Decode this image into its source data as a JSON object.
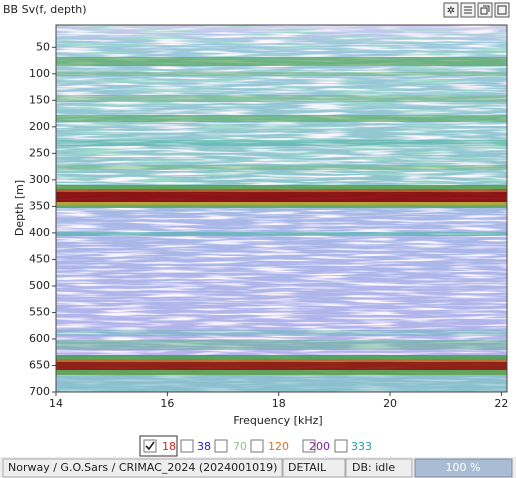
{
  "window": {
    "title": "BB Sv(f, depth)"
  },
  "plot": {
    "x_label": "Frequency [kHz]",
    "y_label": "Depth [m]",
    "xlim": [
      14,
      22.1
    ],
    "ylim": [
      8,
      700
    ],
    "xticks": [
      14,
      16,
      18,
      20,
      22
    ],
    "yticks": [
      50,
      100,
      150,
      200,
      250,
      300,
      350,
      400,
      450,
      500,
      550,
      600,
      650,
      700
    ]
  },
  "channels": [
    {
      "label": "18",
      "checked": true,
      "color": "#e02020"
    },
    {
      "label": "38",
      "checked": false,
      "color": "#2020c0"
    },
    {
      "label": "70",
      "checked": false,
      "color": "#90c090"
    },
    {
      "label": "120",
      "checked": false,
      "color": "#e07020"
    },
    {
      "label": "200",
      "checked": false,
      "color": "#8020a0"
    },
    {
      "label": "333",
      "checked": false,
      "color": "#20a0a0"
    }
  ],
  "status": {
    "location": "Norway / G.O.Sars / CRIMAC_2024 (2024001019)",
    "mode": "DETAIL",
    "db": "DB: idle",
    "progress": "100 %"
  }
}
